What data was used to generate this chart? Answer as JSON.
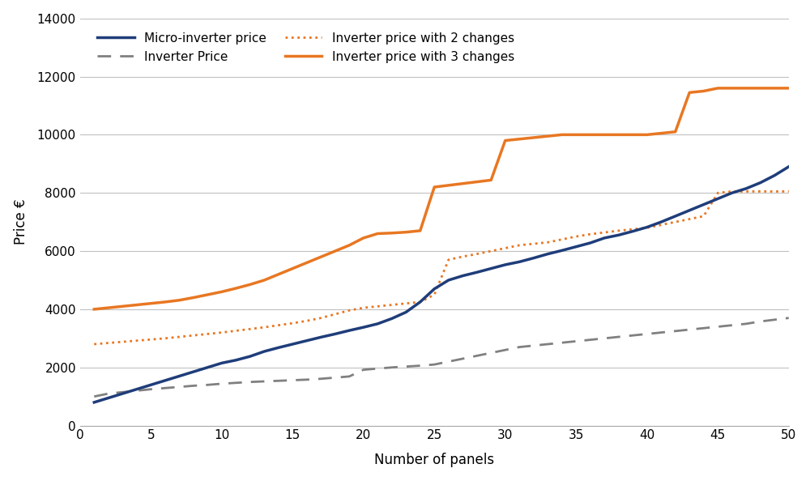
{
  "xlabel": "Number of panels",
  "ylabel": "Price €",
  "xlim": [
    0,
    50
  ],
  "ylim": [
    0,
    14000
  ],
  "yticks": [
    0,
    2000,
    4000,
    6000,
    8000,
    10000,
    12000,
    14000
  ],
  "xticks": [
    0,
    5,
    10,
    15,
    20,
    25,
    30,
    35,
    40,
    45,
    50
  ],
  "micro_color": "#1f3d7a",
  "inverter_color": "#808080",
  "orange_color": "#e87722",
  "bg_color": "#ffffff",
  "grid_color": "#c0c0c0",
  "legend_labels": [
    "Micro-inverter price",
    "Inverter Price",
    "Inverter price with 2 changes",
    "Inverter price with 3 changes"
  ],
  "micro_x": [
    1,
    2,
    3,
    4,
    5,
    6,
    7,
    8,
    9,
    10,
    11,
    12,
    13,
    14,
    15,
    16,
    17,
    18,
    19,
    20,
    21,
    22,
    23,
    24,
    25,
    26,
    27,
    28,
    29,
    30,
    31,
    32,
    33,
    34,
    35,
    36,
    37,
    38,
    39,
    40,
    41,
    42,
    43,
    44,
    45,
    46,
    47,
    48,
    49,
    50
  ],
  "micro_y": [
    800,
    950,
    1100,
    1250,
    1400,
    1550,
    1700,
    1850,
    2000,
    2150,
    2250,
    2380,
    2550,
    2680,
    2800,
    2920,
    3040,
    3150,
    3270,
    3380,
    3500,
    3680,
    3900,
    4250,
    4700,
    5000,
    5150,
    5270,
    5400,
    5530,
    5630,
    5760,
    5900,
    6020,
    6150,
    6280,
    6450,
    6550,
    6680,
    6820,
    7000,
    7200,
    7400,
    7600,
    7800,
    8000,
    8150,
    8350,
    8600,
    8900
  ],
  "inv_x": [
    1,
    2,
    3,
    4,
    5,
    6,
    7,
    8,
    9,
    10,
    11,
    12,
    13,
    14,
    15,
    16,
    17,
    18,
    19,
    20,
    21,
    22,
    23,
    24,
    25,
    26,
    27,
    28,
    29,
    30,
    31,
    32,
    33,
    34,
    35,
    36,
    37,
    38,
    39,
    40,
    41,
    42,
    43,
    44,
    45,
    46,
    47,
    48,
    49,
    50
  ],
  "inv_y": [
    1000,
    1100,
    1150,
    1200,
    1250,
    1290,
    1330,
    1370,
    1400,
    1440,
    1470,
    1500,
    1520,
    1540,
    1560,
    1580,
    1610,
    1650,
    1690,
    1920,
    1960,
    2000,
    2030,
    2060,
    2100,
    2200,
    2300,
    2400,
    2500,
    2600,
    2700,
    2750,
    2800,
    2850,
    2900,
    2950,
    3000,
    3050,
    3100,
    3150,
    3200,
    3250,
    3300,
    3350,
    3400,
    3450,
    3500,
    3580,
    3640,
    3700
  ],
  "inv2_x": [
    1,
    2,
    3,
    4,
    5,
    6,
    7,
    8,
    9,
    10,
    11,
    12,
    13,
    14,
    15,
    16,
    17,
    18,
    19,
    20,
    21,
    22,
    23,
    24,
    25,
    26,
    27,
    28,
    29,
    30,
    31,
    32,
    33,
    34,
    35,
    36,
    37,
    38,
    39,
    40,
    41,
    42,
    43,
    44,
    45,
    46,
    47,
    48,
    49,
    50
  ],
  "inv2_y": [
    2800,
    2840,
    2880,
    2920,
    2960,
    3000,
    3050,
    3100,
    3150,
    3200,
    3260,
    3320,
    3380,
    3450,
    3520,
    3600,
    3700,
    3830,
    3960,
    4050,
    4100,
    4150,
    4200,
    4250,
    4500,
    5700,
    5810,
    5900,
    6000,
    6100,
    6200,
    6250,
    6300,
    6400,
    6500,
    6580,
    6640,
    6700,
    6750,
    6800,
    6900,
    7000,
    7100,
    7200,
    8000,
    8050,
    8050,
    8050,
    8050,
    8050
  ],
  "inv3_x": [
    1,
    2,
    3,
    4,
    5,
    6,
    7,
    8,
    9,
    10,
    11,
    12,
    13,
    14,
    15,
    16,
    17,
    18,
    19,
    20,
    21,
    22,
    23,
    24,
    25,
    26,
    27,
    28,
    29,
    30,
    31,
    32,
    33,
    34,
    35,
    36,
    37,
    38,
    39,
    40,
    41,
    42,
    43,
    44,
    45,
    46,
    47,
    48,
    49,
    50
  ],
  "inv3_y": [
    4000,
    4050,
    4100,
    4150,
    4200,
    4250,
    4310,
    4400,
    4500,
    4600,
    4720,
    4850,
    5000,
    5200,
    5400,
    5600,
    5800,
    6000,
    6200,
    6450,
    6600,
    6620,
    6650,
    6700,
    8200,
    8260,
    8320,
    8380,
    8440,
    9800,
    9850,
    9900,
    9950,
    10000,
    10000,
    10000,
    10000,
    10000,
    10000,
    10000,
    10050,
    10100,
    11450,
    11500,
    11600,
    11600,
    11600,
    11600,
    11600,
    11600
  ]
}
